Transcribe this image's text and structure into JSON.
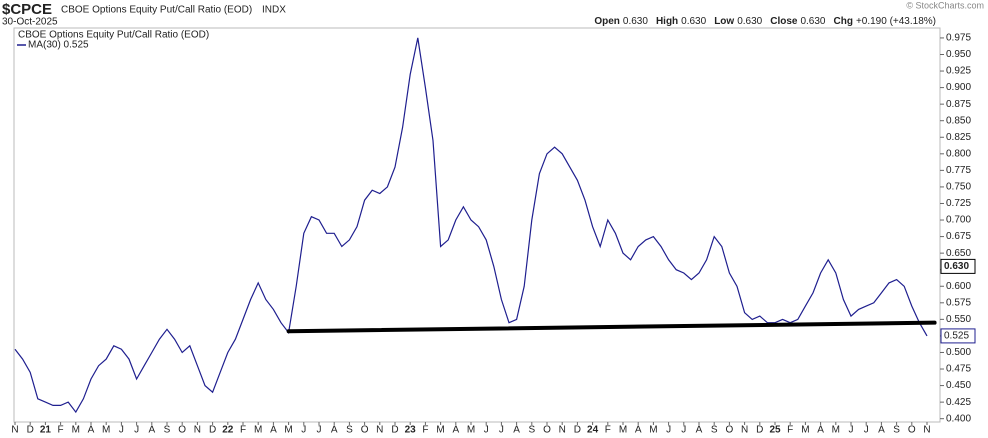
{
  "chart_data": {
    "type": "line",
    "symbol": "$CPCE",
    "title": "CBOE Options Equity Put/Call Ratio (EOD)",
    "exchange": "INDX",
    "date": "30-Oct-2025",
    "copyright": "© StockCharts.com",
    "quote": [
      {
        "label": "Open",
        "value": "0.630"
      },
      {
        "label": "High",
        "value": "0.630"
      },
      {
        "label": "Low",
        "value": "0.630"
      },
      {
        "label": "Close",
        "value": "0.630"
      },
      {
        "label": "Chg",
        "value": "+0.190 (+43.18%)"
      }
    ],
    "legend_title": "CBOE Options Equity Put/Call Ratio (EOD)",
    "categories": [
      "N",
      null,
      "D",
      null,
      "21",
      null,
      "F",
      null,
      "M",
      null,
      "A",
      null,
      "M",
      null,
      "J",
      null,
      "J",
      null,
      "A",
      null,
      "S",
      null,
      "O",
      null,
      "N",
      null,
      "D",
      null,
      "22",
      null,
      "F",
      null,
      "M",
      null,
      "A",
      null,
      "M",
      null,
      "J",
      null,
      "J",
      null,
      "A",
      null,
      "S",
      null,
      "O",
      null,
      "N",
      null,
      "D",
      null,
      "23",
      null,
      "F",
      null,
      "M",
      null,
      "A",
      null,
      "M",
      null,
      "J",
      null,
      "J",
      null,
      "A",
      null,
      "S",
      null,
      "O",
      null,
      "N",
      null,
      "D",
      null,
      "24",
      null,
      "F",
      null,
      "M",
      null,
      "A",
      null,
      "M",
      null,
      "J",
      null,
      "J",
      null,
      "A",
      null,
      "S",
      null,
      "O",
      null,
      "N",
      null,
      "D",
      null,
      "25",
      null,
      "F",
      null,
      "M",
      null,
      "A",
      null,
      "M",
      null,
      "J",
      null,
      "J",
      null,
      "A",
      null,
      "S",
      null,
      "O",
      null,
      "N",
      null
    ],
    "series": [
      {
        "name": "MA(30) 0.525",
        "color": "#1f1f8f",
        "values": [
          0.505,
          0.49,
          0.47,
          0.43,
          0.425,
          0.42,
          0.42,
          0.425,
          0.41,
          0.43,
          0.46,
          0.48,
          0.49,
          0.51,
          0.505,
          0.49,
          0.46,
          0.48,
          0.5,
          0.52,
          0.535,
          0.52,
          0.5,
          0.51,
          0.48,
          0.45,
          0.44,
          0.47,
          0.5,
          0.52,
          0.55,
          0.58,
          0.605,
          0.58,
          0.565,
          0.545,
          0.53,
          0.6,
          0.68,
          0.705,
          0.7,
          0.68,
          0.68,
          0.66,
          0.67,
          0.69,
          0.73,
          0.745,
          0.74,
          0.75,
          0.78,
          0.84,
          0.92,
          0.975,
          0.9,
          0.82,
          0.66,
          0.67,
          0.7,
          0.72,
          0.7,
          0.69,
          0.67,
          0.63,
          0.58,
          0.545,
          0.55,
          0.6,
          0.7,
          0.77,
          0.8,
          0.81,
          0.8,
          0.78,
          0.76,
          0.73,
          0.69,
          0.66,
          0.7,
          0.68,
          0.65,
          0.64,
          0.66,
          0.67,
          0.675,
          0.66,
          0.64,
          0.625,
          0.62,
          0.61,
          0.62,
          0.64,
          0.675,
          0.66,
          0.62,
          0.6,
          0.56,
          0.55,
          0.555,
          0.545,
          0.545,
          0.55,
          0.545,
          0.55,
          0.57,
          0.59,
          0.62,
          0.64,
          0.62,
          0.58,
          0.555,
          0.565,
          0.57,
          0.575,
          0.59,
          0.605,
          0.61,
          0.6,
          0.57,
          0.545,
          0.525,
          null
        ]
      }
    ],
    "trendline": {
      "start": 36,
      "end": 121,
      "values": [
        0.532,
        0.545
      ],
      "color": "#000000"
    },
    "price_label": {
      "value": 0.63,
      "label": "0.630"
    },
    "ma_label": {
      "value": 0.525,
      "label": "0.525"
    },
    "ylim": [
      0.395,
      0.99
    ],
    "yticks": [
      {
        "value": 0.4,
        "label": "0.400"
      },
      0.425,
      {
        "value": 0.45,
        "label": "0.450"
      },
      0.475,
      {
        "value": 0.5,
        "label": "0.500"
      },
      0.525,
      {
        "value": 0.55,
        "label": "0.550"
      },
      0.575,
      {
        "value": 0.6,
        "label": "0.600"
      },
      0.625,
      {
        "value": 0.65,
        "label": "0.650"
      },
      0.675,
      {
        "value": 0.7,
        "label": "0.700"
      },
      0.725,
      {
        "value": 0.75,
        "label": "0.750"
      },
      0.775,
      {
        "value": 0.8,
        "label": "0.800"
      },
      0.825,
      {
        "value": 0.85,
        "label": "0.850"
      },
      0.875,
      {
        "value": 0.9,
        "label": "0.900"
      },
      0.925,
      {
        "value": 0.95,
        "label": "0.950"
      },
      0.975
    ],
    "grid": false
  }
}
